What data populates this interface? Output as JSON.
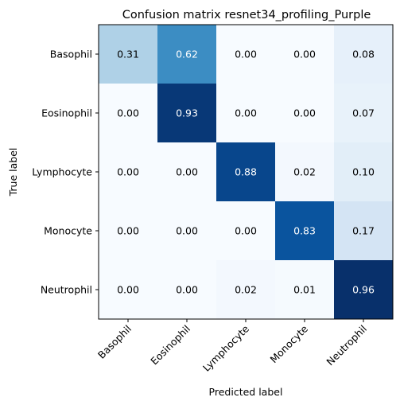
{
  "chart_data": {
    "type": "heatmap",
    "title": "Confusion matrix resnet34_profiling_Purple",
    "xlabel": "Predicted label",
    "ylabel": "True label",
    "x_categories": [
      "Basophil",
      "Eosinophil",
      "Lymphocyte",
      "Monocyte",
      "Neutrophil"
    ],
    "y_categories": [
      "Basophil",
      "Eosinophil",
      "Lymphocyte",
      "Monocyte",
      "Neutrophil"
    ],
    "values": [
      [
        0.31,
        0.62,
        0.0,
        0.0,
        0.08
      ],
      [
        0.0,
        0.93,
        0.0,
        0.0,
        0.07
      ],
      [
        0.0,
        0.0,
        0.88,
        0.02,
        0.1
      ],
      [
        0.0,
        0.0,
        0.0,
        0.83,
        0.17
      ],
      [
        0.0,
        0.0,
        0.02,
        0.01,
        0.96
      ]
    ],
    "value_format": "0.00",
    "colormap": "Blues",
    "vmin": 0,
    "vmax": 0.96,
    "grid": false,
    "x_tick_rotation": 45
  }
}
